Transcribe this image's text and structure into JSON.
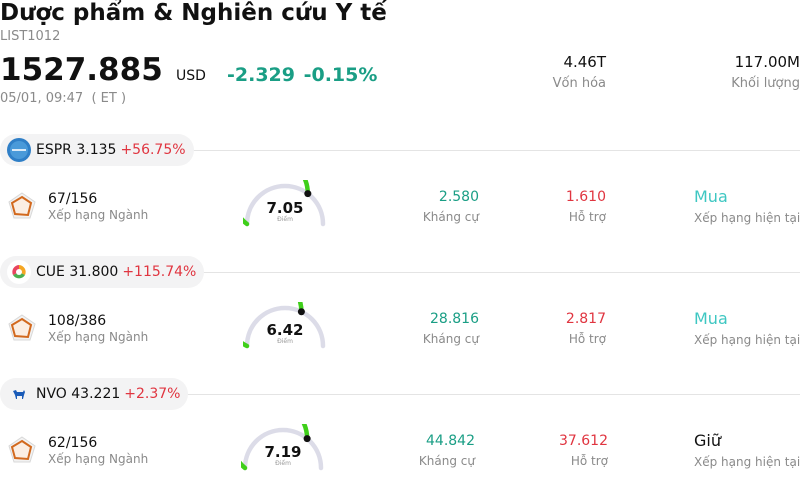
{
  "header": {
    "title": "Dược phẩm & Nghiên cứu Y tế",
    "code": "LIST1012",
    "price": "1527.885",
    "currency": "USD",
    "change": "-2.329",
    "change_pct": "-0.15%",
    "time": "05/01, 09:47  ( ET )",
    "market_cap_value": "4.46T",
    "market_cap_label": "Vốn hóa",
    "volume_value": "117.00M",
    "volume_label": "Khối lượng"
  },
  "stocks": [
    {
      "symbol_price": "ESPR 3.135",
      "change_pct": "+56.75%",
      "logo_icon": "esperion-logo-icon",
      "rank": "67/156",
      "rank_label": "Xếp hạng Ngành",
      "score": "7.05",
      "score_label": "Điểm",
      "score_fraction": 0.705,
      "resistance": "2.580",
      "resistance_label": "Kháng cự",
      "support": "1.610",
      "support_label": "Hỗ trợ",
      "rating": "Mua",
      "rating_label": "Xếp hạng hiện tại",
      "rating_color": "#3ec7c2"
    },
    {
      "symbol_price": "CUE 31.800",
      "change_pct": "+115.74%",
      "logo_icon": "cue-logo-icon",
      "rank": "108/386",
      "rank_label": "Xếp hạng Ngành",
      "score": "6.42",
      "score_label": "Điểm",
      "score_fraction": 0.642,
      "resistance": "28.816",
      "resistance_label": "Kháng cự",
      "support": "2.817",
      "support_label": "Hỗ trợ",
      "rating": "Mua",
      "rating_label": "Xếp hạng hiện tại",
      "rating_color": "#3ec7c2"
    },
    {
      "symbol_price": "NVO 43.221",
      "change_pct": "+2.37%",
      "logo_icon": "novo-bull-logo-icon",
      "rank": "62/156",
      "rank_label": "Xếp hạng Ngành",
      "score": "7.19",
      "score_label": "Điểm",
      "score_fraction": 0.719,
      "resistance": "44.842",
      "resistance_label": "Kháng cự",
      "support": "37.612",
      "support_label": "Hỗ trợ",
      "rating": "Giữ",
      "rating_label": "Xếp hạng hiện tại",
      "rating_color": "#111111"
    }
  ],
  "colors": {
    "positive": "#1a9e85",
    "negative": "#e03540",
    "gauge_fill": "#3fcf1a",
    "gauge_track": "#dcdce8",
    "rank_icon": "#d2691e"
  }
}
